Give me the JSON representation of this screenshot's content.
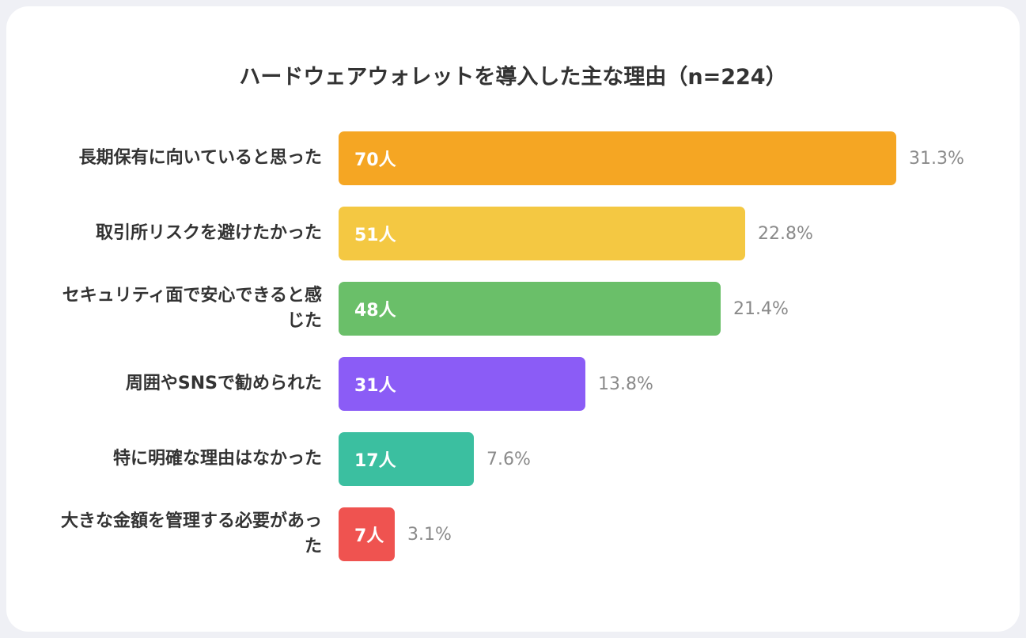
{
  "chart_data": {
    "type": "bar",
    "orientation": "horizontal",
    "title": "ハードウェアウォレットを導入した主な理由（n=224）",
    "categories": [
      "長期保有に向いていると思った",
      "取引所リスクを避けたかった",
      "セキュリティ面で安心できると感じた",
      "周囲やSNSで勧められた",
      "特に明確な理由はなかった",
      "大きな金額を管理する必要があった"
    ],
    "values": [
      70,
      51,
      48,
      31,
      17,
      7
    ],
    "value_labels": [
      "70人",
      "51人",
      "48人",
      "31人",
      "17人",
      "7人"
    ],
    "percent_labels": [
      "31.3%",
      "22.8%",
      "21.4%",
      "13.8%",
      "7.6%",
      "3.1%"
    ],
    "colors": [
      "#f5a623",
      "#f4c842",
      "#6abf69",
      "#8b5cf6",
      "#3bbfa0",
      "#ef5350"
    ],
    "xlim": [
      0,
      70
    ],
    "grid": false,
    "legend": "none"
  }
}
